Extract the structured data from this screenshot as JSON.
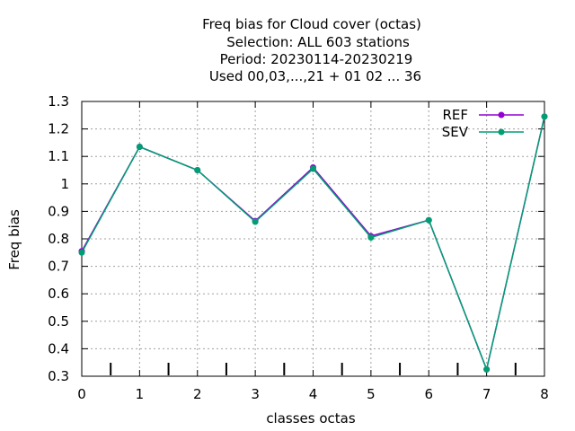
{
  "chart_data": {
    "type": "line",
    "title_lines": [
      "Freq bias  for Cloud cover (octas)",
      "Selection: ALL    603 stations",
      "Period: 20230114-20230219",
      "Used  00,03,...,21  + 01 02 ... 36"
    ],
    "xlabel": "classes octas",
    "ylabel": "Freq bias",
    "x": [
      0,
      1,
      2,
      3,
      4,
      5,
      6,
      7,
      8
    ],
    "xlim": [
      0,
      8
    ],
    "ylim": [
      0.3,
      1.3
    ],
    "xticks": [
      "0",
      "1",
      "2",
      "3",
      "4",
      "5",
      "6",
      "7",
      "8"
    ],
    "yticks": [
      "0.3",
      "0.4",
      "0.5",
      "0.6",
      "0.7",
      "0.8",
      "0.9",
      "1",
      "1.1",
      "1.2",
      "1.3"
    ],
    "minor_bar_positions": [
      0.5,
      1.5,
      2.5,
      3.5,
      4.5,
      5.5,
      6.5,
      7.5
    ],
    "grid": true,
    "legend_position": "top-right",
    "series": [
      {
        "name": "REF",
        "color": "#9400d3",
        "values": [
          0.755,
          1.135,
          1.05,
          0.865,
          1.06,
          0.81,
          0.868,
          0.325,
          1.245
        ]
      },
      {
        "name": "SEV",
        "color": "#009e73",
        "values": [
          0.75,
          1.135,
          1.05,
          0.862,
          1.055,
          0.805,
          0.868,
          0.325,
          1.245
        ]
      }
    ]
  }
}
